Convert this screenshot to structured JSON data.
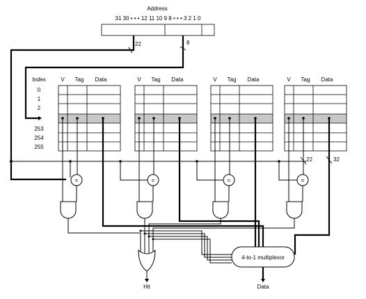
{
  "address": {
    "title": "Address",
    "bits": "31 30 • • • 12 11 10 9 8 • • • 3 2 1 0",
    "tag_width": "22",
    "index_width": "8"
  },
  "cache": {
    "index_header": "Index",
    "rows_top": [
      "0",
      "1",
      "2"
    ],
    "rows_bottom": [
      "253",
      "254",
      "255"
    ],
    "columns": [
      "V",
      "Tag",
      "Data"
    ],
    "way_count": 4,
    "highlight_color": "#c8c8c8",
    "tag_bits": "22",
    "data_bits": "32"
  },
  "logic": {
    "comparator_symbol": "=",
    "mux_label": "4-to-1 multiplexor"
  },
  "outputs": {
    "hit": "Hit",
    "data": "Data"
  }
}
